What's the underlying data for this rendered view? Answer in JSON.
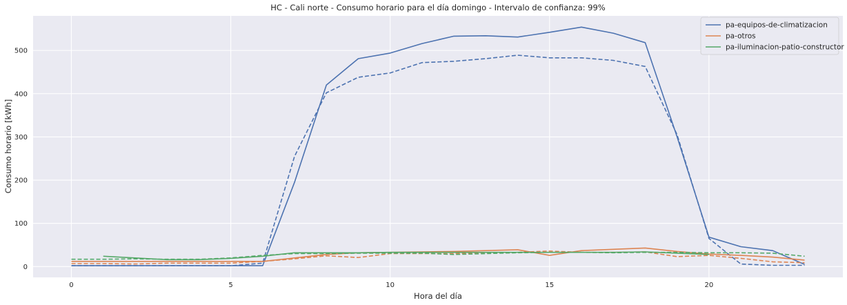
{
  "chart_data": {
    "type": "line",
    "title": "HC - Cali norte - Consumo horario para el día domingo - Intervalo de confianza: 99%",
    "xlabel": "Hora del día",
    "ylabel": "Consumo horario [kWh]",
    "xlim": [
      -1.2,
      24.2
    ],
    "ylim": [
      -25,
      580
    ],
    "xticks": [
      0,
      5,
      10,
      15,
      20
    ],
    "yticks": [
      0,
      100,
      200,
      300,
      400,
      500
    ],
    "grid": true,
    "legend_position": "top-right",
    "series": [
      {
        "name": "pa-equipos-de-climatizacion",
        "color": "#4c72b0",
        "x": [
          0,
          1,
          2,
          3,
          4,
          5,
          6,
          7,
          8,
          9,
          10,
          11,
          12,
          13,
          14,
          15,
          16,
          17,
          18,
          19,
          20,
          21,
          22,
          23
        ],
        "values": [
          2,
          2,
          2,
          2,
          2,
          2,
          2,
          195,
          420,
          481,
          494,
          516,
          533,
          534,
          531,
          542,
          554,
          540,
          518,
          300,
          68,
          46,
          37,
          5
        ],
        "dashed": [
          2,
          2,
          2,
          2,
          2,
          2,
          8,
          255,
          402,
          438,
          448,
          472,
          475,
          481,
          489,
          483,
          483,
          477,
          463,
          305,
          65,
          6,
          3,
          3
        ]
      },
      {
        "name": "pa-otros",
        "color": "#dd8452",
        "x": [
          0,
          1,
          2,
          3,
          4,
          5,
          6,
          7,
          8,
          9,
          10,
          11,
          12,
          13,
          14,
          15,
          16,
          17,
          18,
          19,
          20,
          21,
          22,
          23
        ],
        "values": [
          12,
          12,
          12,
          12,
          12,
          12,
          12,
          20,
          28,
          32,
          33,
          34,
          35,
          37,
          39,
          26,
          37,
          40,
          43,
          35,
          29,
          26,
          22,
          15
        ],
        "dashed": [
          7,
          7,
          6,
          8,
          8,
          8,
          12,
          18,
          25,
          21,
          30,
          30,
          30,
          32,
          33,
          36,
          33,
          33,
          34,
          23,
          26,
          19,
          11,
          9
        ]
      },
      {
        "name": "pa-iluminacion-patio-constructor",
        "color": "#55a868",
        "x": [
          1,
          2,
          3,
          4,
          5,
          6,
          7,
          8,
          9,
          10,
          11,
          12,
          13,
          14,
          15,
          16,
          17,
          18,
          19,
          20
        ],
        "values": [
          24,
          20,
          16,
          16,
          19,
          24,
          32,
          32,
          32,
          33,
          33,
          33,
          33,
          33,
          33,
          33,
          33,
          34,
          31,
          28
        ],
        "dashed_x": [
          0,
          1,
          2,
          3,
          4,
          5,
          6,
          7,
          8,
          9,
          10,
          11,
          12,
          13,
          14,
          15,
          16,
          17,
          18,
          19,
          20,
          21,
          22,
          23
        ],
        "dashed": [
          17,
          17,
          18,
          17,
          17,
          20,
          26,
          30,
          30,
          31,
          31,
          31,
          28,
          30,
          32,
          33,
          33,
          32,
          33,
          33,
          32,
          32,
          31,
          24
        ]
      }
    ]
  }
}
